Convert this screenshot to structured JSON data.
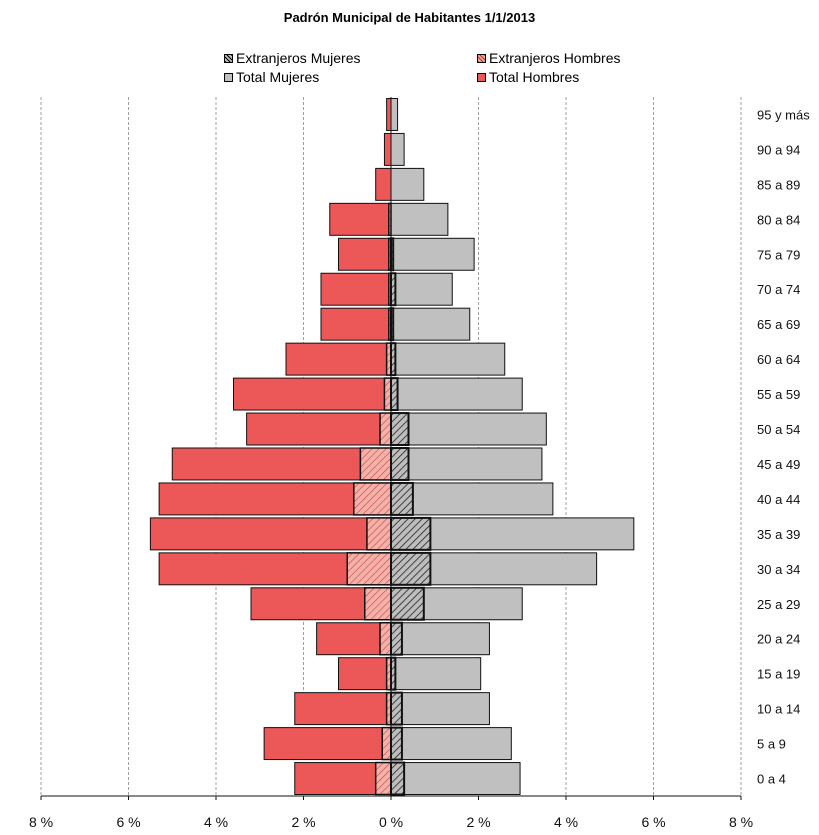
{
  "title": "Padrón Municipal de Habitantes  1/1/2013",
  "legend": {
    "extranjeros_mujeres": "Extranjeros Mujeres",
    "extranjeros_hombres": "Extranjeros Hombres",
    "total_mujeres": "Total Mujeres",
    "total_hombres": "Total Hombres"
  },
  "colors": {
    "total_hombres": "#ec5757",
    "total_mujeres": "#c0c0c0",
    "extranjeros_hombres": "#f2a39c",
    "extranjeros_mujeres": "#bdbdbd"
  },
  "chart_data": {
    "type": "bar",
    "orientation": "horizontal-pyramid",
    "xlim": [
      -8,
      8
    ],
    "x_ticks": [
      "8 %",
      "6 %",
      "4 %",
      "2 %",
      "0 %",
      "2 %",
      "4 %",
      "6 %",
      "8 %"
    ],
    "grid": "vertical dashed",
    "legend_placement": "top",
    "categories": [
      "0 a 4",
      "5 a 9",
      "10 a 14",
      "15 a 19",
      "20 a 24",
      "25 a 29",
      "30 a 34",
      "35 a 39",
      "40 a 44",
      "45 a 49",
      "50 a 54",
      "55 a 59",
      "60 a 64",
      "65 a 69",
      "70 a 74",
      "75 a 79",
      "80 a 84",
      "85 a 89",
      "90 a 94",
      "95 y más"
    ],
    "series": [
      {
        "name": "Total Hombres",
        "side": "left",
        "values": [
          2.2,
          2.9,
          2.2,
          1.2,
          1.7,
          3.2,
          5.3,
          5.5,
          5.3,
          5.0,
          3.3,
          3.6,
          2.4,
          1.6,
          1.6,
          1.2,
          1.4,
          0.35,
          0.15,
          0.1
        ]
      },
      {
        "name": "Total Mujeres",
        "side": "right",
        "values": [
          2.95,
          2.75,
          2.25,
          2.05,
          2.25,
          3.0,
          4.7,
          5.55,
          3.7,
          3.45,
          3.55,
          3.0,
          2.6,
          1.8,
          1.4,
          1.9,
          1.3,
          0.75,
          0.3,
          0.15
        ]
      },
      {
        "name": "Extranjeros Hombres",
        "side": "left",
        "values": [
          0.35,
          0.2,
          0.1,
          0.1,
          0.25,
          0.6,
          1.0,
          0.55,
          0.85,
          0.7,
          0.25,
          0.15,
          0.1,
          0.05,
          0.05,
          0.05,
          0.05,
          0.0,
          0.0,
          0.0
        ]
      },
      {
        "name": "Extranjeros Mujeres",
        "side": "right",
        "values": [
          0.3,
          0.25,
          0.25,
          0.1,
          0.25,
          0.75,
          0.9,
          0.9,
          0.5,
          0.4,
          0.4,
          0.15,
          0.1,
          0.05,
          0.1,
          0.05,
          0.0,
          0.0,
          0.0,
          0.0
        ]
      }
    ]
  }
}
